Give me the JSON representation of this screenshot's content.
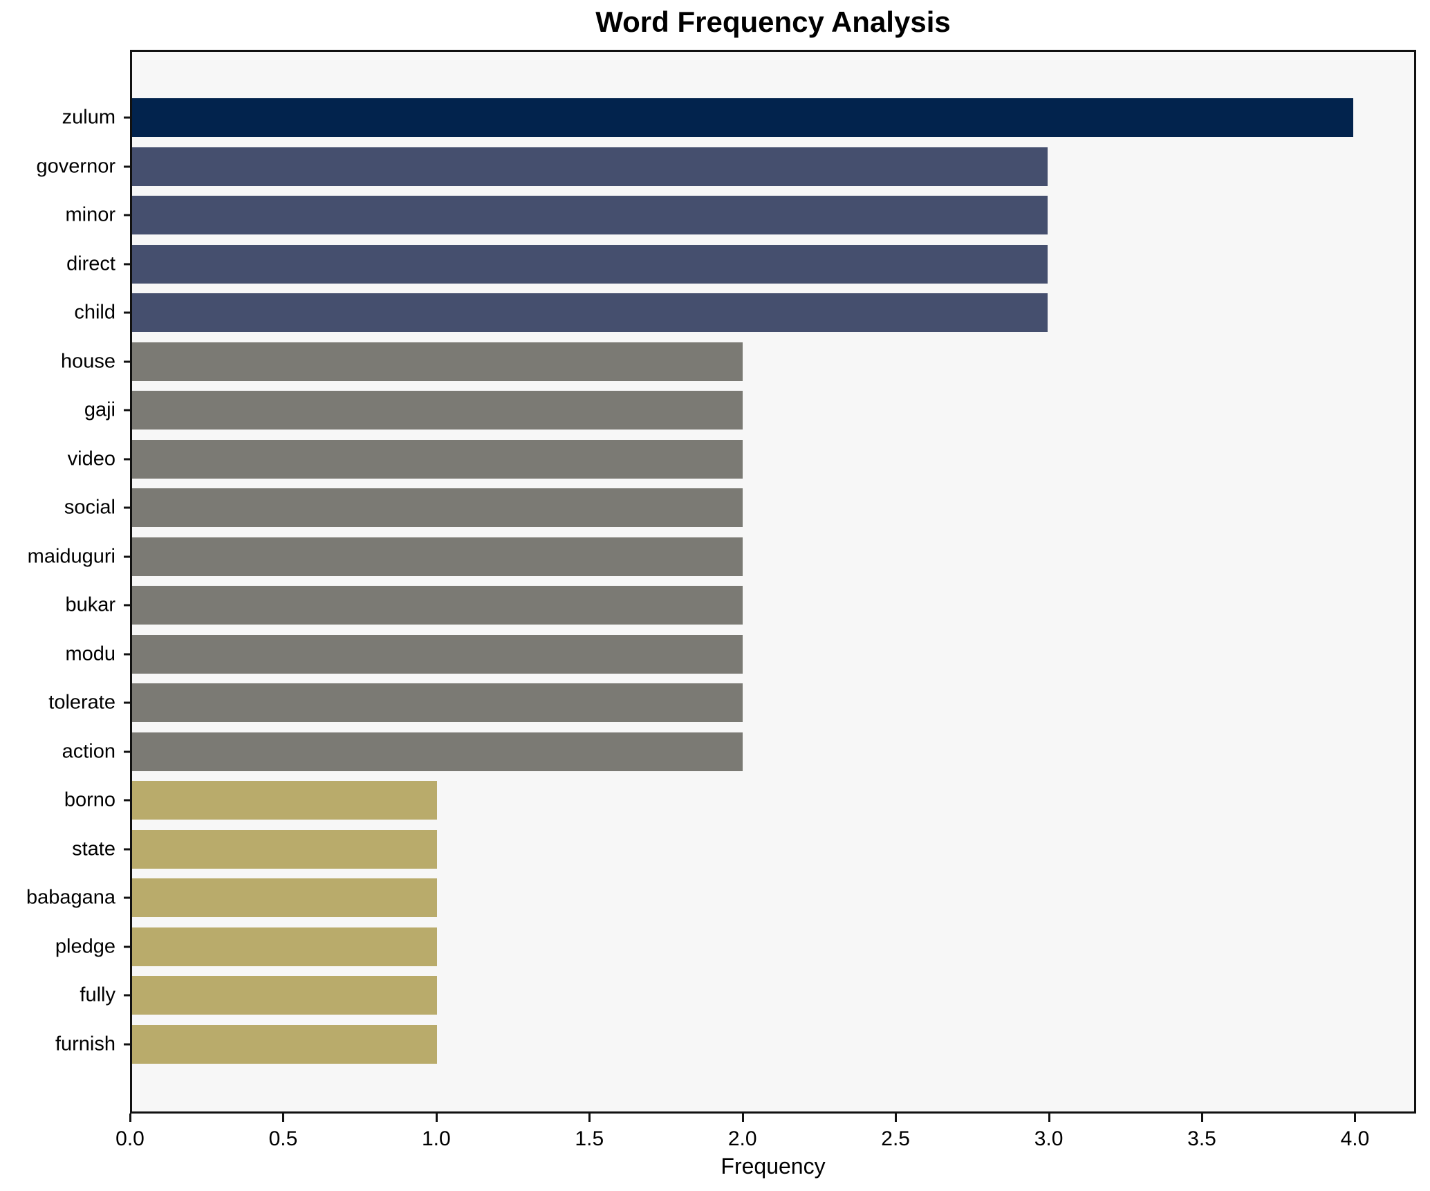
{
  "title": "Word Frequency Analysis",
  "chart_data": {
    "type": "bar",
    "orientation": "horizontal",
    "title": "Word Frequency Analysis",
    "xlabel": "Frequency",
    "ylabel": "",
    "xlim": [
      0,
      4.2
    ],
    "x_ticks": [
      "0.0",
      "0.5",
      "1.0",
      "1.5",
      "2.0",
      "2.5",
      "3.0",
      "3.5",
      "4.0"
    ],
    "grid": false,
    "legend": "none",
    "plot_background": "#f7f7f7",
    "categories": [
      "zulum",
      "governor",
      "minor",
      "direct",
      "child",
      "house",
      "gaji",
      "video",
      "social",
      "maiduguri",
      "bukar",
      "modu",
      "tolerate",
      "action",
      "borno",
      "state",
      "babagana",
      "pledge",
      "fully",
      "furnish"
    ],
    "values": [
      4,
      3,
      3,
      3,
      3,
      2,
      2,
      2,
      2,
      2,
      2,
      2,
      2,
      2,
      1,
      1,
      1,
      1,
      1,
      1
    ],
    "bar_colors": [
      "#02234d",
      "#454f6e",
      "#454f6e",
      "#454f6e",
      "#454f6e",
      "#7b7a74",
      "#7b7a74",
      "#7b7a74",
      "#7b7a74",
      "#7b7a74",
      "#7b7a74",
      "#7b7a74",
      "#7b7a74",
      "#7b7a74",
      "#b9ab6b",
      "#b9ab6b",
      "#b9ab6b",
      "#b9ab6b",
      "#b9ab6b",
      "#b9ab6b"
    ]
  },
  "colors": {
    "value_4": "#02234d",
    "value_3": "#454f6e",
    "value_2": "#7b7a74",
    "value_1": "#b9ab6b",
    "axis_spine": "#111111",
    "plot_background": "#f7f7f7",
    "figure_background": "#ffffff",
    "text": "#000000"
  }
}
